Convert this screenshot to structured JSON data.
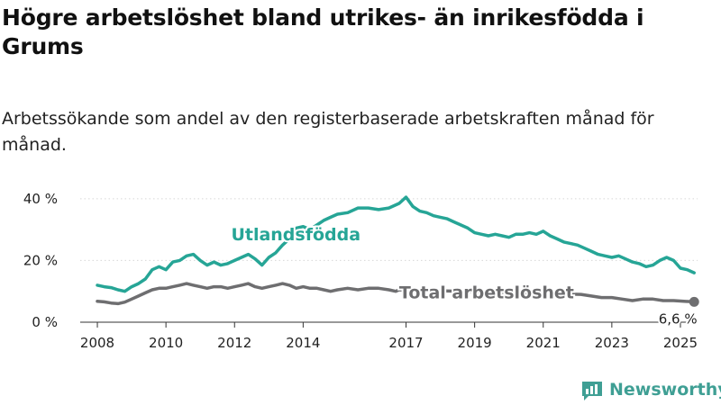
{
  "title": "Högre arbetslöshet bland utrikes- än inrikesfödda i Grums",
  "subtitle": "Arbetssökande som andel av den registerbaserade arbetskraften månad för månad.",
  "brand": {
    "name": "Newsworthy",
    "logo_icon": "bar-chart-logo-icon",
    "color": "#3f9f94"
  },
  "chart_data": {
    "type": "line",
    "xlim": [
      2007.5,
      2025.5
    ],
    "ylim": [
      0,
      42
    ],
    "x_ticks": [
      {
        "value": 2008,
        "label": "2008"
      },
      {
        "value": 2010,
        "label": "2010"
      },
      {
        "value": 2012,
        "label": "2012"
      },
      {
        "value": 2014,
        "label": "2014"
      },
      {
        "value": 2017,
        "label": "2017"
      },
      {
        "value": 2019,
        "label": "2019"
      },
      {
        "value": 2021,
        "label": "2021"
      },
      {
        "value": 2023,
        "label": "2023"
      },
      {
        "value": 2025,
        "label": "2025"
      }
    ],
    "y_ticks": [
      {
        "value": 0,
        "label": "0 %"
      },
      {
        "value": 20,
        "label": "20 %"
      },
      {
        "value": 40,
        "label": "40 %"
      }
    ],
    "grid": "horizontal",
    "series": [
      {
        "name": "Utlandsfödda",
        "color": "#26a596",
        "label_at": [
          2011.9,
          26.5
        ],
        "points": [
          [
            2008.0,
            12.0
          ],
          [
            2008.2,
            11.5
          ],
          [
            2008.4,
            11.2
          ],
          [
            2008.6,
            10.5
          ],
          [
            2008.8,
            10.0
          ],
          [
            2009.0,
            11.5
          ],
          [
            2009.2,
            12.5
          ],
          [
            2009.4,
            14.0
          ],
          [
            2009.6,
            17.0
          ],
          [
            2009.8,
            18.0
          ],
          [
            2010.0,
            17.0
          ],
          [
            2010.2,
            19.5
          ],
          [
            2010.4,
            20.0
          ],
          [
            2010.6,
            21.5
          ],
          [
            2010.8,
            22.0
          ],
          [
            2011.0,
            20.0
          ],
          [
            2011.2,
            18.5
          ],
          [
            2011.4,
            19.5
          ],
          [
            2011.6,
            18.5
          ],
          [
            2011.8,
            19.0
          ],
          [
            2012.0,
            20.0
          ],
          [
            2012.2,
            21.0
          ],
          [
            2012.4,
            22.0
          ],
          [
            2012.6,
            20.5
          ],
          [
            2012.8,
            18.5
          ],
          [
            2013.0,
            21.0
          ],
          [
            2013.2,
            22.5
          ],
          [
            2013.4,
            25.0
          ],
          [
            2013.6,
            27.0
          ],
          [
            2013.8,
            30.5
          ],
          [
            2014.0,
            31.0
          ],
          [
            2014.2,
            30.0
          ],
          [
            2014.4,
            31.5
          ],
          [
            2014.6,
            33.0
          ],
          [
            2014.8,
            34.0
          ],
          [
            2015.0,
            35.0
          ],
          [
            2015.3,
            35.5
          ],
          [
            2015.6,
            37.0
          ],
          [
            2015.9,
            37.0
          ],
          [
            2016.2,
            36.5
          ],
          [
            2016.5,
            37.0
          ],
          [
            2016.8,
            38.5
          ],
          [
            2017.0,
            40.5
          ],
          [
            2017.2,
            37.5
          ],
          [
            2017.4,
            36.0
          ],
          [
            2017.6,
            35.5
          ],
          [
            2017.8,
            34.5
          ],
          [
            2018.0,
            34.0
          ],
          [
            2018.2,
            33.5
          ],
          [
            2018.4,
            32.5
          ],
          [
            2018.6,
            31.5
          ],
          [
            2018.8,
            30.5
          ],
          [
            2019.0,
            29.0
          ],
          [
            2019.2,
            28.5
          ],
          [
            2019.4,
            28.0
          ],
          [
            2019.6,
            28.5
          ],
          [
            2019.8,
            28.0
          ],
          [
            2020.0,
            27.5
          ],
          [
            2020.2,
            28.5
          ],
          [
            2020.4,
            28.5
          ],
          [
            2020.6,
            29.0
          ],
          [
            2020.8,
            28.5
          ],
          [
            2021.0,
            29.5
          ],
          [
            2021.2,
            28.0
          ],
          [
            2021.4,
            27.0
          ],
          [
            2021.6,
            26.0
          ],
          [
            2021.8,
            25.5
          ],
          [
            2022.0,
            25.0
          ],
          [
            2022.2,
            24.0
          ],
          [
            2022.4,
            23.0
          ],
          [
            2022.6,
            22.0
          ],
          [
            2022.8,
            21.5
          ],
          [
            2023.0,
            21.0
          ],
          [
            2023.2,
            21.5
          ],
          [
            2023.4,
            20.5
          ],
          [
            2023.6,
            19.5
          ],
          [
            2023.8,
            19.0
          ],
          [
            2024.0,
            18.0
          ],
          [
            2024.2,
            18.5
          ],
          [
            2024.4,
            20.0
          ],
          [
            2024.6,
            21.0
          ],
          [
            2024.8,
            20.0
          ],
          [
            2025.0,
            17.5
          ],
          [
            2025.2,
            17.0
          ],
          [
            2025.4,
            16.0
          ]
        ]
      },
      {
        "name": "Total arbetslöshet",
        "color": "#6e6e70",
        "label_at": [
          2016.8,
          7.8
        ],
        "end_value_label": "6,6 %",
        "points": [
          [
            2008.0,
            6.8
          ],
          [
            2008.2,
            6.6
          ],
          [
            2008.4,
            6.2
          ],
          [
            2008.6,
            6.0
          ],
          [
            2008.8,
            6.5
          ],
          [
            2009.0,
            7.5
          ],
          [
            2009.2,
            8.5
          ],
          [
            2009.4,
            9.5
          ],
          [
            2009.6,
            10.5
          ],
          [
            2009.8,
            11.0
          ],
          [
            2010.0,
            11.0
          ],
          [
            2010.2,
            11.5
          ],
          [
            2010.4,
            12.0
          ],
          [
            2010.6,
            12.5
          ],
          [
            2010.8,
            12.0
          ],
          [
            2011.0,
            11.5
          ],
          [
            2011.2,
            11.0
          ],
          [
            2011.4,
            11.5
          ],
          [
            2011.6,
            11.5
          ],
          [
            2011.8,
            11.0
          ],
          [
            2012.0,
            11.5
          ],
          [
            2012.2,
            12.0
          ],
          [
            2012.4,
            12.5
          ],
          [
            2012.6,
            11.5
          ],
          [
            2012.8,
            11.0
          ],
          [
            2013.0,
            11.5
          ],
          [
            2013.2,
            12.0
          ],
          [
            2013.4,
            12.5
          ],
          [
            2013.6,
            12.0
          ],
          [
            2013.8,
            11.0
          ],
          [
            2014.0,
            11.5
          ],
          [
            2014.2,
            11.0
          ],
          [
            2014.4,
            11.0
          ],
          [
            2014.6,
            10.5
          ],
          [
            2014.8,
            10.0
          ],
          [
            2015.0,
            10.5
          ],
          [
            2015.3,
            11.0
          ],
          [
            2015.6,
            10.5
          ],
          [
            2015.9,
            11.0
          ],
          [
            2016.2,
            11.0
          ],
          [
            2016.5,
            10.5
          ],
          [
            2016.7,
            10.0
          ],
          [
            2016.8,
            10.5
          ],
          [
            2022.1,
            9.0
          ],
          [
            2022.4,
            8.5
          ],
          [
            2022.7,
            8.0
          ],
          [
            2023.0,
            8.0
          ],
          [
            2023.3,
            7.5
          ],
          [
            2023.6,
            7.0
          ],
          [
            2023.9,
            7.5
          ],
          [
            2024.2,
            7.5
          ],
          [
            2024.5,
            7.0
          ],
          [
            2024.8,
            7.0
          ],
          [
            2025.1,
            6.8
          ],
          [
            2025.4,
            6.6
          ]
        ]
      }
    ]
  }
}
